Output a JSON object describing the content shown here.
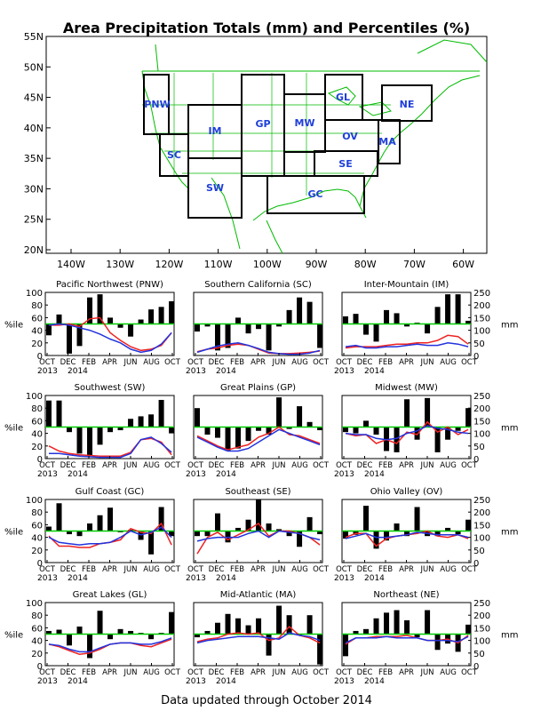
{
  "title": "Area Precipitation Totals (mm) and Percentiles (%)",
  "footer": "Data updated through October 2014",
  "colors": {
    "grid": "#00bb00",
    "label": "#1f3fd8",
    "box": "#000000",
    "bars": "#000000",
    "midline": "#00cc00",
    "pct_line": "#ee2222",
    "mm_line": "#2233dd"
  },
  "map": {
    "lat_ticks": [
      "55N",
      "50N",
      "45N",
      "40N",
      "35N",
      "30N",
      "25N",
      "20N"
    ],
    "lon_ticks": [
      "140W",
      "130W",
      "120W",
      "110W",
      "100W",
      "90W",
      "80W",
      "70W",
      "60W"
    ],
    "regions": [
      "PNW",
      "SC",
      "IM",
      "SW",
      "GP",
      "MW",
      "GL",
      "OV",
      "SE",
      "GC",
      "MA",
      "NE"
    ]
  },
  "panel_common": {
    "y_left_label": "%ile",
    "y_right_label": "mm",
    "left_ticks": [
      "100",
      "80",
      "60",
      "40",
      "20",
      "0"
    ],
    "right_ticks": [
      "250",
      "200",
      "150",
      "100",
      "50",
      "0"
    ],
    "x_ticks": [
      "OCT",
      "DEC",
      "FEB",
      "APR",
      "JUN",
      "AUG",
      "OCT"
    ],
    "year_labels": [
      "2013",
      "2014"
    ]
  },
  "chart_data": [
    {
      "type": "bar",
      "title": "Pacific Northwest (PNW)",
      "categories": [
        "Oct13",
        "Nov13",
        "Dec13",
        "Jan14",
        "Feb14",
        "Mar14",
        "Apr14",
        "May14",
        "Jun14",
        "Jul14",
        "Aug14",
        "Sep14",
        "Oct14"
      ],
      "series": [
        {
          "values": [
            32,
            65,
            3,
            15,
            92,
            97,
            60,
            44,
            30,
            57,
            73,
            77,
            86
          ]
        }
      ],
      "lines": {
        "percentile_avg": [
          48,
          48,
          50,
          46,
          58,
          60,
          36,
          24,
          14,
          8,
          10,
          16,
          36
        ],
        "mm_avg": [
          48,
          50,
          48,
          44,
          40,
          34,
          26,
          20,
          10,
          5,
          8,
          18,
          36
        ]
      },
      "ylim": [
        0,
        100
      ],
      "y2lim": [
        0,
        250
      ]
    },
    {
      "type": "bar",
      "title": "Southern California (SC)",
      "categories": [
        "Oct13",
        "Nov13",
        "Dec13",
        "Jan14",
        "Feb14",
        "Mar14",
        "Apr14",
        "May14",
        "Jun14",
        "Jul14",
        "Aug14",
        "Sep14",
        "Oct14"
      ],
      "series": [
        {
          "values": [
            38,
            46,
            8,
            12,
            60,
            35,
            42,
            8,
            46,
            72,
            92,
            85,
            12
          ]
        }
      ],
      "lines": {
        "percentile_avg": [
          6,
          10,
          12,
          16,
          18,
          16,
          10,
          4,
          3,
          3,
          4,
          5,
          7
        ],
        "mm_avg": [
          5,
          10,
          15,
          18,
          20,
          16,
          11,
          5,
          3,
          2,
          2,
          4,
          8
        ]
      },
      "ylim": [
        0,
        100
      ],
      "y2lim": [
        0,
        250
      ]
    },
    {
      "type": "bar",
      "title": "Inter-Mountain (IM)",
      "categories": [
        "Oct13",
        "Nov13",
        "Dec13",
        "Jan14",
        "Feb14",
        "Mar14",
        "Apr14",
        "May14",
        "Jun14",
        "Jul14",
        "Aug14",
        "Sep14",
        "Oct14"
      ],
      "series": [
        {
          "values": [
            62,
            66,
            33,
            22,
            72,
            67,
            46,
            52,
            35,
            77,
            97,
            97,
            55
          ]
        }
      ],
      "lines": {
        "percentile_avg": [
          12,
          14,
          14,
          14,
          16,
          18,
          18,
          20,
          20,
          24,
          32,
          30,
          18
        ],
        "mm_avg": [
          14,
          16,
          12,
          12,
          14,
          14,
          16,
          18,
          16,
          16,
          20,
          18,
          14
        ]
      },
      "ylim": [
        0,
        100
      ],
      "y2lim": [
        0,
        250
      ]
    },
    {
      "type": "bar",
      "title": "Southwest (SW)",
      "categories": [
        "Oct13",
        "Nov13",
        "Dec13",
        "Jan14",
        "Feb14",
        "Mar14",
        "Apr14",
        "May14",
        "Jun14",
        "Jul14",
        "Aug14",
        "Sep14",
        "Oct14"
      ],
      "series": [
        {
          "values": [
            92,
            92,
            42,
            8,
            5,
            22,
            42,
            45,
            63,
            67,
            70,
            93,
            40
          ]
        }
      ],
      "lines": {
        "percentile_avg": [
          20,
          12,
          8,
          6,
          5,
          4,
          4,
          4,
          10,
          30,
          32,
          26,
          6
        ],
        "mm_avg": [
          8,
          8,
          6,
          4,
          3,
          2,
          2,
          2,
          8,
          30,
          34,
          24,
          10
        ]
      },
      "ylim": [
        0,
        100
      ],
      "y2lim": [
        0,
        250
      ]
    },
    {
      "type": "bar",
      "title": "Great Plains (GP)",
      "categories": [
        "Oct13",
        "Nov13",
        "Dec13",
        "Jan14",
        "Feb14",
        "Mar14",
        "Apr14",
        "May14",
        "Jun14",
        "Jul14",
        "Aug14",
        "Sep14",
        "Oct14"
      ],
      "series": [
        {
          "values": [
            80,
            38,
            33,
            12,
            16,
            28,
            44,
            38,
            97,
            47,
            83,
            58,
            45
          ]
        }
      ],
      "lines": {
        "percentile_avg": [
          36,
          28,
          20,
          14,
          18,
          22,
          34,
          40,
          50,
          38,
          36,
          30,
          24
        ],
        "mm_avg": [
          34,
          26,
          18,
          12,
          12,
          16,
          26,
          36,
          46,
          40,
          34,
          28,
          22
        ]
      },
      "ylim": [
        0,
        100
      ],
      "y2lim": [
        0,
        250
      ]
    },
    {
      "type": "bar",
      "title": "Midwest (MW)",
      "categories": [
        "Oct13",
        "Nov13",
        "Dec13",
        "Jan14",
        "Feb14",
        "Mar14",
        "Apr14",
        "May14",
        "Jun14",
        "Jul14",
        "Aug14",
        "Sep14",
        "Oct14"
      ],
      "series": [
        {
          "values": [
            42,
            40,
            60,
            38,
            12,
            10,
            94,
            30,
            96,
            10,
            30,
            44,
            80
          ]
        }
      ],
      "lines": {
        "percentile_avg": [
          40,
          36,
          38,
          24,
          30,
          24,
          42,
          38,
          58,
          42,
          50,
          38,
          46
        ],
        "mm_avg": [
          40,
          38,
          38,
          32,
          30,
          32,
          40,
          44,
          52,
          48,
          46,
          42,
          40
        ]
      },
      "ylim": [
        0,
        100
      ],
      "y2lim": [
        0,
        250
      ]
    },
    {
      "type": "bar",
      "title": "Gulf Coast (GC)",
      "categories": [
        "Oct13",
        "Nov13",
        "Dec13",
        "Jan14",
        "Feb14",
        "Mar14",
        "Apr14",
        "May14",
        "Jun14",
        "Jul14",
        "Aug14",
        "Sep14",
        "Oct14"
      ],
      "series": [
        {
          "values": [
            57,
            94,
            45,
            42,
            62,
            75,
            87,
            48,
            52,
            36,
            13,
            88,
            42
          ]
        }
      ],
      "lines": {
        "percentile_avg": [
          42,
          26,
          26,
          24,
          24,
          30,
          32,
          36,
          54,
          48,
          46,
          62,
          28
        ],
        "mm_avg": [
          40,
          32,
          30,
          28,
          30,
          30,
          32,
          40,
          50,
          44,
          48,
          56,
          40
        ]
      },
      "ylim": [
        0,
        100
      ],
      "y2lim": [
        0,
        250
      ]
    },
    {
      "type": "bar",
      "title": "Southeast (SE)",
      "categories": [
        "Oct13",
        "Nov13",
        "Dec13",
        "Jan14",
        "Feb14",
        "Mar14",
        "Apr14",
        "May14",
        "Jun14",
        "Jul14",
        "Aug14",
        "Sep14",
        "Oct14"
      ],
      "series": [
        {
          "values": [
            42,
            42,
            78,
            32,
            55,
            68,
            100,
            62,
            53,
            42,
            25,
            72,
            45
          ]
        }
      ],
      "lines": {
        "percentile_avg": [
          14,
          40,
          48,
          36,
          44,
          52,
          62,
          42,
          50,
          50,
          46,
          40,
          28
        ],
        "mm_avg": [
          34,
          38,
          40,
          40,
          40,
          46,
          50,
          40,
          50,
          48,
          46,
          40,
          36
        ]
      },
      "ylim": [
        0,
        100
      ],
      "y2lim": [
        0,
        250
      ]
    },
    {
      "type": "bar",
      "title": "Ohio Valley (OV)",
      "categories": [
        "Oct13",
        "Nov13",
        "Dec13",
        "Jan14",
        "Feb14",
        "Mar14",
        "Apr14",
        "May14",
        "Jun14",
        "Jul14",
        "Aug14",
        "Sep14",
        "Oct14"
      ],
      "series": [
        {
          "values": [
            38,
            44,
            90,
            22,
            35,
            62,
            42,
            88,
            42,
            42,
            55,
            45,
            68
          ]
        }
      ],
      "lines": {
        "percentile_avg": [
          40,
          46,
          46,
          26,
          38,
          42,
          44,
          46,
          50,
          42,
          40,
          44,
          38
        ],
        "mm_avg": [
          38,
          42,
          46,
          40,
          40,
          42,
          44,
          48,
          46,
          44,
          44,
          44,
          40
        ]
      },
      "ylim": [
        0,
        100
      ],
      "y2lim": [
        0,
        250
      ]
    },
    {
      "type": "bar",
      "title": "Great Lakes (GL)",
      "categories": [
        "Oct13",
        "Nov13",
        "Dec13",
        "Jan14",
        "Feb14",
        "Mar14",
        "Apr14",
        "May14",
        "Jun14",
        "Jul14",
        "Aug14",
        "Sep14",
        "Oct14"
      ],
      "series": [
        {
          "values": [
            55,
            57,
            32,
            62,
            12,
            87,
            42,
            58,
            55,
            52,
            42,
            52,
            85
          ]
        }
      ],
      "lines": {
        "percentile_avg": [
          34,
          30,
          24,
          18,
          20,
          26,
          34,
          36,
          36,
          32,
          30,
          36,
          42
        ],
        "mm_avg": [
          34,
          32,
          26,
          22,
          22,
          28,
          34,
          36,
          36,
          34,
          34,
          38,
          44
        ]
      },
      "ylim": [
        0,
        100
      ],
      "y2lim": [
        0,
        250
      ]
    },
    {
      "type": "bar",
      "title": "Mid-Atlantic (MA)",
      "categories": [
        "Oct13",
        "Nov13",
        "Dec13",
        "Jan14",
        "Feb14",
        "Mar14",
        "Apr14",
        "May14",
        "Jun14",
        "Jul14",
        "Aug14",
        "Sep14",
        "Oct14"
      ],
      "series": [
        {
          "values": [
            45,
            55,
            68,
            82,
            75,
            64,
            75,
            16,
            95,
            80,
            48,
            80,
            2
          ]
        }
      ],
      "lines": {
        "percentile_avg": [
          38,
          42,
          44,
          50,
          52,
          50,
          52,
          40,
          44,
          62,
          48,
          44,
          36
        ],
        "mm_avg": [
          36,
          40,
          42,
          44,
          46,
          46,
          46,
          44,
          42,
          52,
          48,
          46,
          40
        ]
      },
      "ylim": [
        0,
        100
      ],
      "y2lim": [
        0,
        250
      ]
    },
    {
      "type": "bar",
      "title": "Northeast (NE)",
      "categories": [
        "Oct13",
        "Nov13",
        "Dec13",
        "Jan14",
        "Feb14",
        "Mar14",
        "Apr14",
        "May14",
        "Jun14",
        "Jul14",
        "Aug14",
        "Sep14",
        "Oct14"
      ],
      "series": [
        {
          "values": [
            15,
            55,
            58,
            75,
            84,
            88,
            72,
            45,
            88,
            25,
            35,
            22,
            65
          ]
        }
      ],
      "lines": {
        "percentile_avg": [
          34,
          44,
          44,
          46,
          46,
          46,
          48,
          44,
          40,
          40,
          42,
          36,
          48
        ],
        "mm_avg": [
          36,
          44,
          44,
          44,
          46,
          44,
          44,
          44,
          40,
          40,
          40,
          38,
          46
        ]
      },
      "ylim": [
        0,
        100
      ],
      "y2lim": [
        0,
        250
      ]
    }
  ]
}
